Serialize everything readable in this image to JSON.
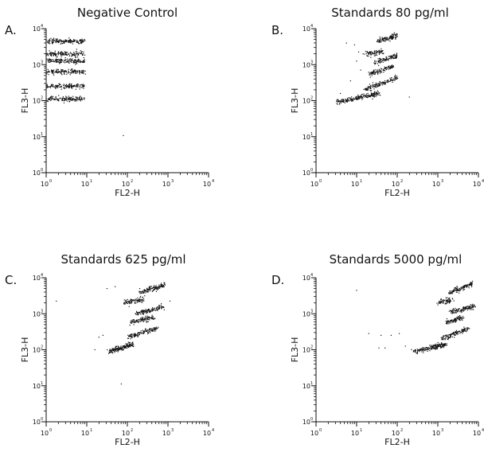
{
  "chart_data": [
    {
      "type": "scatter",
      "letter": "A.",
      "title": "Negative Control",
      "xlabel": "FL2-H",
      "ylabel": "FL3-H",
      "xscale": "log",
      "yscale": "log",
      "xlim_log10": [
        0,
        4
      ],
      "ylim_log10": [
        0,
        4
      ],
      "xticks": [
        {
          "base": "10",
          "exp": "0"
        },
        {
          "base": "10",
          "exp": "1"
        },
        {
          "base": "10",
          "exp": "2"
        },
        {
          "base": "10",
          "exp": "3"
        },
        {
          "base": "10",
          "exp": "4"
        }
      ],
      "yticks": [
        {
          "base": "10",
          "exp": "0"
        },
        {
          "base": "10",
          "exp": "1"
        },
        {
          "base": "10",
          "exp": "2"
        },
        {
          "base": "10",
          "exp": "3"
        },
        {
          "base": "10",
          "exp": "4"
        }
      ],
      "clusters": [
        {
          "x_log10": [
            0.0,
            0.95
          ],
          "y_log10": 3.65,
          "n": 160
        },
        {
          "x_log10": [
            0.0,
            0.95
          ],
          "y_log10": 3.3,
          "n": 150
        },
        {
          "x_log10": [
            0.0,
            0.95
          ],
          "y_log10": 3.1,
          "n": 150
        },
        {
          "x_log10": [
            0.0,
            0.95
          ],
          "y_log10": 2.8,
          "n": 150
        },
        {
          "x_log10": [
            0.0,
            0.95
          ],
          "y_log10": 2.4,
          "n": 140
        },
        {
          "x_log10": [
            0.0,
            0.95
          ],
          "y_log10": 2.05,
          "n": 150
        }
      ],
      "outliers": [
        [
          1.9,
          1.03
        ]
      ]
    },
    {
      "type": "scatter",
      "letter": "B.",
      "title": "Standards 80 pg/ml",
      "xlabel": "FL2-H",
      "ylabel": "FL3-H",
      "xscale": "log",
      "yscale": "log",
      "xlim_log10": [
        0,
        4
      ],
      "ylim_log10": [
        0,
        4
      ],
      "xticks": [
        {
          "base": "10",
          "exp": "0"
        },
        {
          "base": "10",
          "exp": "1"
        },
        {
          "base": "10",
          "exp": "2"
        },
        {
          "base": "10",
          "exp": "3"
        },
        {
          "base": "10",
          "exp": "4"
        }
      ],
      "yticks": [
        {
          "base": "10",
          "exp": "0"
        },
        {
          "base": "10",
          "exp": "1"
        },
        {
          "base": "10",
          "exp": "2"
        },
        {
          "base": "10",
          "exp": "3"
        },
        {
          "base": "10",
          "exp": "4"
        }
      ],
      "clusters": [
        {
          "x_log10": [
            1.5,
            2.0
          ],
          "y_log10": [
            3.65,
            3.8
          ],
          "n": 110
        },
        {
          "x_log10": [
            1.2,
            1.65
          ],
          "y_log10": [
            3.3,
            3.35
          ],
          "n": 80
        },
        {
          "x_log10": [
            1.45,
            2.0
          ],
          "y_log10": [
            3.05,
            3.25
          ],
          "n": 110
        },
        {
          "x_log10": [
            1.35,
            1.9
          ],
          "y_log10": [
            2.75,
            2.95
          ],
          "n": 110
        },
        {
          "x_log10": [
            1.2,
            2.0
          ],
          "y_log10": [
            2.3,
            2.65
          ],
          "n": 140
        },
        {
          "x_log10": [
            0.5,
            1.55
          ],
          "y_log10": [
            1.95,
            2.2
          ],
          "n": 220
        }
      ],
      "outliers": [
        [
          0.75,
          3.6
        ],
        [
          0.95,
          3.55
        ],
        [
          1.0,
          3.1
        ],
        [
          0.85,
          2.55
        ],
        [
          1.1,
          2.85
        ],
        [
          0.6,
          2.2
        ],
        [
          2.3,
          2.1
        ],
        [
          1.05,
          3.35
        ]
      ]
    },
    {
      "type": "scatter",
      "letter": "C.",
      "title": "Standards 625 pg/ml",
      "xlabel": "FL2-H",
      "ylabel": "FL3-H",
      "xscale": "log",
      "yscale": "log",
      "xlim_log10": [
        0,
        4
      ],
      "ylim_log10": [
        0,
        4
      ],
      "xticks": [
        {
          "base": "10",
          "exp": "0"
        },
        {
          "base": "10",
          "exp": "1"
        },
        {
          "base": "10",
          "exp": "2"
        },
        {
          "base": "10",
          "exp": "3"
        },
        {
          "base": "10",
          "exp": "4"
        }
      ],
      "yticks": [
        {
          "base": "10",
          "exp": "0"
        },
        {
          "base": "10",
          "exp": "1"
        },
        {
          "base": "10",
          "exp": "2"
        },
        {
          "base": "10",
          "exp": "3"
        },
        {
          "base": "10",
          "exp": "4"
        }
      ],
      "clusters": [
        {
          "x_log10": [
            2.3,
            2.95
          ],
          "y_log10": [
            3.6,
            3.8
          ],
          "n": 130
        },
        {
          "x_log10": [
            1.9,
            2.4
          ],
          "y_log10": [
            3.3,
            3.4
          ],
          "n": 90
        },
        {
          "x_log10": [
            2.2,
            2.9
          ],
          "y_log10": [
            3.0,
            3.2
          ],
          "n": 130
        },
        {
          "x_log10": [
            2.05,
            2.65
          ],
          "y_log10": [
            2.75,
            2.9
          ],
          "n": 110
        },
        {
          "x_log10": [
            2.0,
            2.75
          ],
          "y_log10": [
            2.35,
            2.6
          ],
          "n": 130
        },
        {
          "x_log10": [
            1.55,
            2.15
          ],
          "y_log10": [
            1.95,
            2.15
          ],
          "n": 170
        }
      ],
      "outliers": [
        [
          0.25,
          3.35
        ],
        [
          1.5,
          3.7
        ],
        [
          1.7,
          3.75
        ],
        [
          1.2,
          2.0
        ],
        [
          1.4,
          2.4
        ],
        [
          1.85,
          1.05
        ],
        [
          1.3,
          2.35
        ],
        [
          3.05,
          3.35
        ]
      ]
    },
    {
      "type": "scatter",
      "letter": "D.",
      "title": "Standards 5000 pg/ml",
      "xlabel": "FL2-H",
      "ylabel": "FL3-H",
      "xscale": "log",
      "yscale": "log",
      "xlim_log10": [
        0,
        4
      ],
      "ylim_log10": [
        0,
        4
      ],
      "xticks": [
        {
          "base": "10",
          "exp": "0"
        },
        {
          "base": "10",
          "exp": "1"
        },
        {
          "base": "10",
          "exp": "2"
        },
        {
          "base": "10",
          "exp": "3"
        },
        {
          "base": "10",
          "exp": "4"
        }
      ],
      "yticks": [
        {
          "base": "10",
          "exp": "0"
        },
        {
          "base": "10",
          "exp": "1"
        },
        {
          "base": "10",
          "exp": "2"
        },
        {
          "base": "10",
          "exp": "3"
        },
        {
          "base": "10",
          "exp": "4"
        }
      ],
      "clusters": [
        {
          "x_log10": [
            3.3,
            3.85
          ],
          "y_log10": [
            3.6,
            3.82
          ],
          "n": 130
        },
        {
          "x_log10": [
            3.0,
            3.35
          ],
          "y_log10": [
            3.3,
            3.38
          ],
          "n": 80
        },
        {
          "x_log10": [
            3.3,
            3.9
          ],
          "y_log10": [
            3.05,
            3.2
          ],
          "n": 130
        },
        {
          "x_log10": [
            3.2,
            3.6
          ],
          "y_log10": [
            2.75,
            2.9
          ],
          "n": 100
        },
        {
          "x_log10": [
            3.1,
            3.75
          ],
          "y_log10": [
            2.3,
            2.6
          ],
          "n": 130
        },
        {
          "x_log10": [
            2.4,
            3.2
          ],
          "y_log10": [
            1.95,
            2.15
          ],
          "n": 200
        }
      ],
      "outliers": [
        [
          1.0,
          3.65
        ],
        [
          1.3,
          2.45
        ],
        [
          1.55,
          2.05
        ],
        [
          1.7,
          2.05
        ],
        [
          1.85,
          2.4
        ],
        [
          2.05,
          2.45
        ],
        [
          2.2,
          2.1
        ],
        [
          1.6,
          2.4
        ]
      ]
    }
  ]
}
